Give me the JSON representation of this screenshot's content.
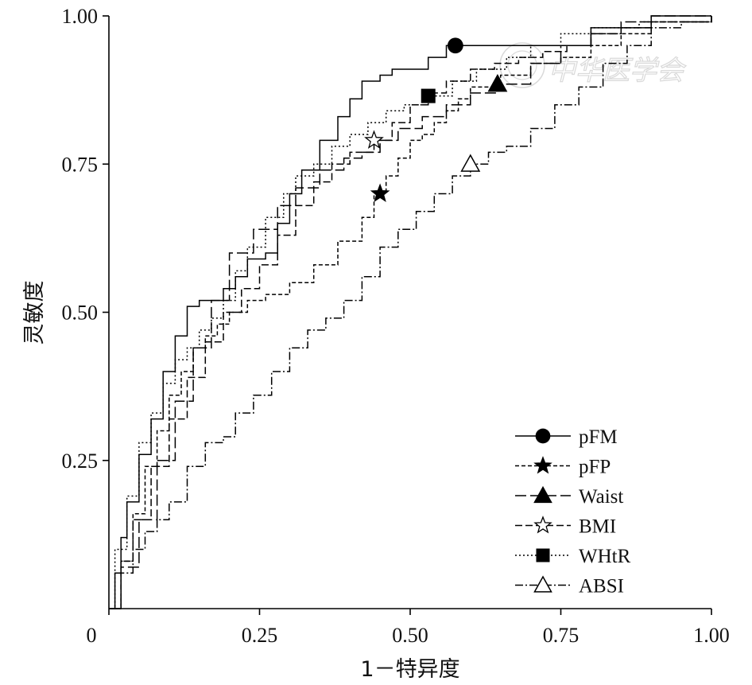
{
  "chart_data": {
    "type": "line",
    "title": "",
    "xlabel": "1－特异度",
    "ylabel": "灵敏度",
    "xlim": [
      0,
      1
    ],
    "ylim": [
      0,
      1
    ],
    "xticks": [
      0,
      0.25,
      0.5,
      0.75,
      1.0
    ],
    "xtick_labels": [
      "0",
      "0.25",
      "0.50",
      "0.75",
      "1.00"
    ],
    "yticks": [
      0.25,
      0.5,
      0.75,
      1.0
    ],
    "ytick_labels": [
      "0.25",
      "0.50",
      "0.75",
      "1.00"
    ],
    "grid": false,
    "legend_position": "bottom-right",
    "series": [
      {
        "name": "pFM",
        "dash": "",
        "marker": "circle",
        "marker_at": [
          0.575,
          0.95
        ],
        "x": [
          0,
          0.01,
          0.02,
          0.03,
          0.05,
          0.07,
          0.09,
          0.11,
          0.13,
          0.15,
          0.17,
          0.19,
          0.21,
          0.23,
          0.26,
          0.28,
          0.3,
          0.32,
          0.35,
          0.38,
          0.4,
          0.42,
          0.45,
          0.47,
          0.5,
          0.53,
          0.56,
          0.575,
          0.62,
          0.72,
          0.8,
          0.9,
          1.0
        ],
        "y": [
          0,
          0.06,
          0.12,
          0.18,
          0.26,
          0.32,
          0.4,
          0.46,
          0.51,
          0.52,
          0.52,
          0.54,
          0.56,
          0.59,
          0.6,
          0.65,
          0.7,
          0.74,
          0.79,
          0.83,
          0.86,
          0.89,
          0.9,
          0.91,
          0.91,
          0.93,
          0.95,
          0.95,
          0.95,
          0.95,
          0.98,
          1.0,
          1.0
        ]
      },
      {
        "name": "pFP",
        "dash": "5,3",
        "marker": "star",
        "marker_at": [
          0.45,
          0.7
        ],
        "x": [
          0,
          0.02,
          0.04,
          0.06,
          0.08,
          0.1,
          0.12,
          0.14,
          0.16,
          0.18,
          0.2,
          0.23,
          0.26,
          0.3,
          0.34,
          0.38,
          0.42,
          0.44,
          0.46,
          0.48,
          0.5,
          0.52,
          0.54,
          0.56,
          0.58,
          0.6,
          0.65,
          0.7,
          0.75,
          0.8,
          0.85,
          0.9,
          1.0
        ],
        "y": [
          0,
          0.08,
          0.16,
          0.24,
          0.3,
          0.36,
          0.4,
          0.44,
          0.46,
          0.48,
          0.5,
          0.52,
          0.53,
          0.55,
          0.58,
          0.62,
          0.66,
          0.7,
          0.73,
          0.76,
          0.79,
          0.8,
          0.82,
          0.84,
          0.86,
          0.88,
          0.9,
          0.92,
          0.93,
          0.95,
          0.97,
          0.99,
          1.0
        ]
      },
      {
        "name": "Waist",
        "dash": "14,5",
        "marker": "triangle",
        "marker_at": [
          0.645,
          0.885
        ],
        "x": [
          0,
          0.02,
          0.05,
          0.08,
          0.11,
          0.14,
          0.17,
          0.2,
          0.24,
          0.28,
          0.31,
          0.35,
          0.39,
          0.42,
          0.45,
          0.48,
          0.52,
          0.56,
          0.6,
          0.645,
          0.7,
          0.75,
          0.8,
          0.85,
          0.9,
          1.0
        ],
        "y": [
          0,
          0.07,
          0.15,
          0.25,
          0.35,
          0.44,
          0.52,
          0.6,
          0.64,
          0.68,
          0.71,
          0.74,
          0.76,
          0.77,
          0.79,
          0.81,
          0.83,
          0.85,
          0.87,
          0.885,
          0.92,
          0.95,
          0.97,
          0.99,
          1.0,
          1.0
        ]
      },
      {
        "name": "BMI",
        "dash": "9,4",
        "marker": "star-open",
        "marker_at": [
          0.44,
          0.79
        ],
        "x": [
          0,
          0.02,
          0.04,
          0.07,
          0.1,
          0.13,
          0.16,
          0.19,
          0.22,
          0.25,
          0.28,
          0.31,
          0.34,
          0.37,
          0.4,
          0.44,
          0.47,
          0.5,
          0.53,
          0.56,
          0.6,
          0.64,
          0.68,
          0.72,
          0.76,
          0.8,
          0.85,
          0.9,
          1.0
        ],
        "y": [
          0,
          0.08,
          0.15,
          0.24,
          0.32,
          0.39,
          0.45,
          0.5,
          0.54,
          0.58,
          0.63,
          0.68,
          0.72,
          0.75,
          0.77,
          0.79,
          0.82,
          0.85,
          0.87,
          0.89,
          0.91,
          0.92,
          0.93,
          0.94,
          0.95,
          0.97,
          0.98,
          0.99,
          1.0
        ]
      },
      {
        "name": "WHtR",
        "dash": "2,3",
        "marker": "square",
        "marker_at": [
          0.53,
          0.865
        ],
        "x": [
          0,
          0.01,
          0.03,
          0.05,
          0.07,
          0.09,
          0.11,
          0.13,
          0.15,
          0.17,
          0.19,
          0.21,
          0.23,
          0.26,
          0.29,
          0.31,
          0.34,
          0.37,
          0.4,
          0.43,
          0.46,
          0.49,
          0.53,
          0.57,
          0.61,
          0.66,
          0.7,
          0.75,
          0.8,
          0.88,
          1.0
        ],
        "y": [
          0,
          0.1,
          0.19,
          0.28,
          0.33,
          0.38,
          0.42,
          0.44,
          0.47,
          0.49,
          0.52,
          0.57,
          0.61,
          0.66,
          0.7,
          0.73,
          0.75,
          0.78,
          0.8,
          0.82,
          0.84,
          0.85,
          0.865,
          0.89,
          0.91,
          0.93,
          0.95,
          0.97,
          0.98,
          0.99,
          1.0
        ]
      },
      {
        "name": "ABSI",
        "dash": "10,3,2,3",
        "marker": "triangle-open",
        "marker_at": [
          0.6,
          0.75
        ],
        "x": [
          0,
          0.02,
          0.04,
          0.06,
          0.08,
          0.1,
          0.13,
          0.16,
          0.19,
          0.21,
          0.24,
          0.27,
          0.3,
          0.33,
          0.36,
          0.39,
          0.42,
          0.45,
          0.48,
          0.51,
          0.54,
          0.57,
          0.6,
          0.63,
          0.66,
          0.7,
          0.74,
          0.78,
          0.82,
          0.86,
          0.9,
          0.95,
          1.0
        ],
        "y": [
          0,
          0.06,
          0.1,
          0.13,
          0.15,
          0.18,
          0.24,
          0.28,
          0.29,
          0.33,
          0.36,
          0.4,
          0.44,
          0.47,
          0.49,
          0.52,
          0.56,
          0.61,
          0.64,
          0.67,
          0.7,
          0.73,
          0.75,
          0.77,
          0.78,
          0.81,
          0.85,
          0.88,
          0.92,
          0.95,
          0.98,
          0.99,
          1.0
        ]
      }
    ]
  },
  "watermark": "中华医学会"
}
